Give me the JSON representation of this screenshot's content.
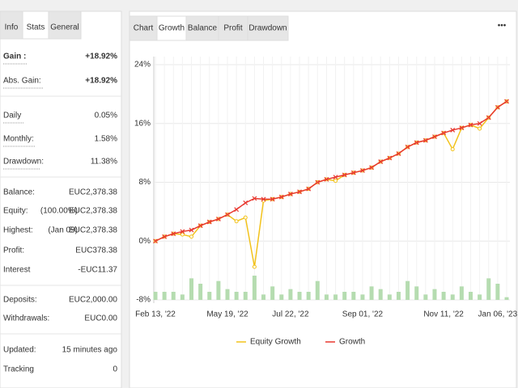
{
  "left_tabs": [
    "Info",
    "Stats",
    "General"
  ],
  "stats": [
    [
      {
        "label": "Gain :",
        "value": "+18.92%",
        "color": "#2e9d3a"
      },
      {
        "label": "Abs. Gain:",
        "value": "+18.92%",
        "color": "#2e9d3a"
      }
    ],
    [
      {
        "label": "Daily",
        "value": "0.05%"
      },
      {
        "label": "Monthly:",
        "value": "1.58%"
      },
      {
        "label": "Drawdown:",
        "value": "11.38%"
      }
    ],
    [
      {
        "label": "Balance:",
        "value": "EUC2,378.38"
      },
      {
        "label": "Equity:",
        "note": "(100.00%)",
        "value": "EUC2,378.38"
      },
      {
        "label": "Highest:",
        "note": "(Jan 09)",
        "value": "EUC2,378.38"
      },
      {
        "label": "Profit:",
        "value": "EUC378.38",
        "color": "#2e9d3a"
      },
      {
        "label": "Interest",
        "value": "-EUC11.37"
      }
    ],
    [
      {
        "label": "Deposits:",
        "value": "EUC2,000.00"
      },
      {
        "label": "Withdrawals:",
        "value": "EUC0.00"
      }
    ],
    [
      {
        "label": "Updated:",
        "value": "15 minutes ago"
      },
      {
        "label": "Tracking",
        "value": "0"
      }
    ]
  ],
  "chart_tabs": [
    "Chart",
    "Growth",
    "Balance",
    "Profit",
    "Drawdown"
  ],
  "chart_data": {
    "type": "line",
    "categories": [
      "Feb 13, '22",
      null,
      null,
      null,
      null,
      null,
      null,
      null,
      "May 19, '22",
      null,
      null,
      null,
      null,
      null,
      null,
      "Jul 22, '22",
      null,
      null,
      null,
      null,
      null,
      null,
      null,
      "Sep 01, '22",
      null,
      null,
      null,
      null,
      null,
      null,
      null,
      null,
      "Nov 11, '22",
      null,
      null,
      null,
      null,
      null,
      "Jan 06, '23",
      null
    ],
    "ylim": [
      -8,
      24
    ],
    "yticks": [
      {
        "value": -8,
        "label": "-8%"
      },
      {
        "value": 0,
        "label": "0%"
      },
      {
        "value": 8,
        "label": "8%"
      },
      {
        "value": 16,
        "label": "16%"
      },
      {
        "value": 24,
        "label": "24%"
      }
    ],
    "grid": true,
    "series": [
      {
        "name": "Equity Growth",
        "color": "#f2c21b",
        "values": [
          0,
          0.6,
          1,
          0.9,
          0.6,
          2.1,
          2.6,
          3,
          3.6,
          2.7,
          3.2,
          -3.5,
          5.5,
          5.7,
          6,
          6.4,
          6.7,
          7.1,
          8,
          8.4,
          8.2,
          9,
          9.3,
          9.6,
          10,
          10.8,
          11.3,
          11.9,
          12.8,
          13.4,
          13.7,
          14.2,
          14.7,
          12.5,
          15.4,
          15.8,
          15.3,
          16.8,
          18.2,
          19
        ]
      },
      {
        "name": "Growth",
        "color": "#e8382f",
        "values": [
          0,
          0.6,
          1,
          1.3,
          1.5,
          2.1,
          2.6,
          3,
          3.6,
          4.3,
          5.2,
          5.8,
          5.7,
          5.7,
          6,
          6.4,
          6.7,
          7.1,
          8,
          8.4,
          8.7,
          9,
          9.3,
          9.6,
          10,
          10.8,
          11.3,
          11.9,
          12.8,
          13.4,
          13.7,
          14.2,
          14.7,
          15.1,
          15.4,
          15.8,
          16,
          16.8,
          18.2,
          19
        ]
      }
    ],
    "bars": {
      "color": "#b5dcb0",
      "values": [
        3,
        3,
        3,
        2,
        8,
        6,
        3,
        7,
        4,
        3,
        3,
        9,
        2,
        5,
        2,
        4,
        3,
        3,
        7,
        2,
        2,
        3,
        3,
        2,
        5,
        4,
        2,
        3,
        7,
        5,
        2,
        4,
        3,
        2,
        5,
        3,
        2,
        8,
        6,
        1
      ]
    }
  }
}
